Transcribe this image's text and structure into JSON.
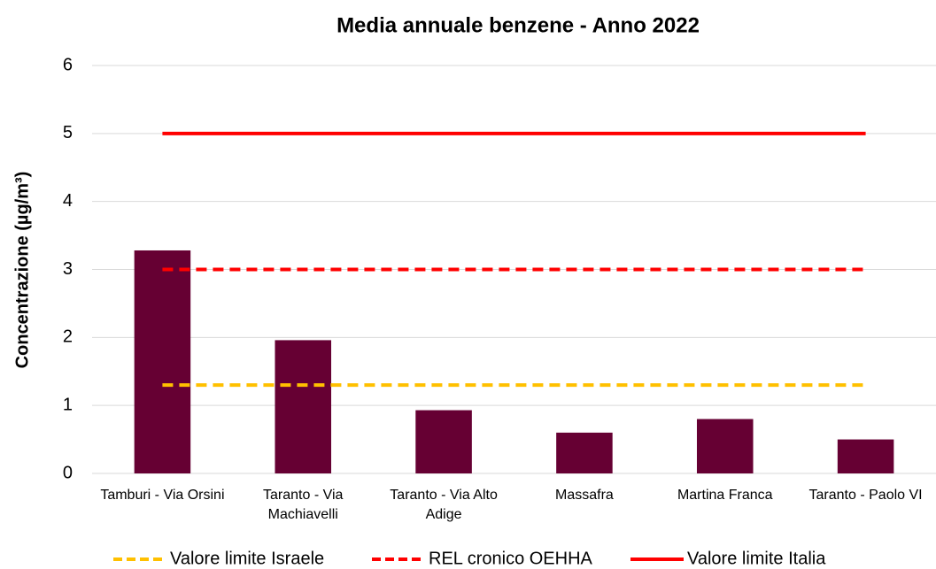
{
  "chart_data": {
    "type": "bar",
    "title": "Media annuale benzene - Anno 2022",
    "y_label": "Concentrazione (µg/m³)",
    "categories": [
      "Tamburi - Via Orsini",
      "Taranto - Via Machiavelli",
      "Taranto - Via Alto Adige",
      "Massafra",
      "Martina Franca",
      "Taranto - Paolo VI"
    ],
    "values": [
      3.28,
      1.96,
      0.93,
      0.6,
      0.8,
      0.5
    ],
    "color": "#660033",
    "reference_lines": [
      {
        "name": "Valore limite Israele",
        "value": 1.3,
        "color": "#ffc000",
        "style": "dashed"
      },
      {
        "name": "REL cronico OEHHA",
        "value": 3,
        "color": "#ff0000",
        "style": "dashed"
      },
      {
        "name": "Valore limite Italia",
        "value": 5,
        "color": "#ff0000",
        "style": "solid"
      }
    ],
    "ylim": [
      0,
      6
    ],
    "yticks": [
      0,
      1,
      2,
      3,
      4,
      5,
      6
    ],
    "grid": true
  }
}
